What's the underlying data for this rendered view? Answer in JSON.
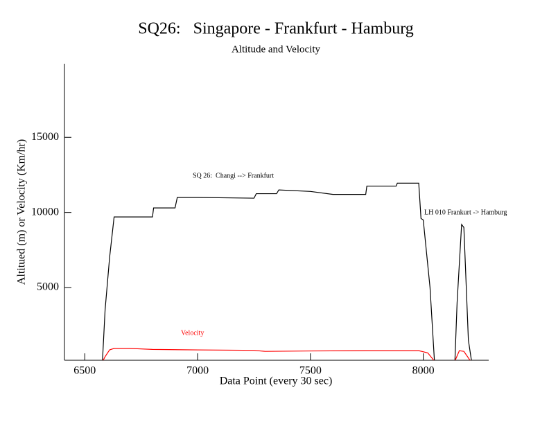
{
  "chart_data": {
    "type": "line",
    "title": "SQ26:   Singapore - Frankfurt - Hamburg",
    "subtitle": "Altitude and Velocity",
    "xlabel": "Data Point (every 30 sec)",
    "ylabel": "Altitued (m) or Velocity (Km/hr)",
    "annotations": [
      "SQ 26:  Changi --> Frankfurt",
      "LH 010 Frankurt -> Hamburg",
      "Velocity"
    ],
    "xlim": [
      6410,
      8290
    ],
    "xticks": [
      6500,
      7000,
      7500,
      8000
    ],
    "ylim": [
      160,
      19900
    ],
    "yticks": [
      5000,
      10000,
      15000
    ],
    "series": [
      {
        "color": "#000000",
        "x": [
          6578,
          6590,
          6610,
          6630,
          6700,
          6800,
          6805,
          6900,
          6910,
          7000,
          7250,
          7260,
          7350,
          7360,
          7500,
          7600,
          7745,
          7750,
          7880,
          7885,
          7980,
          7990,
          8000,
          8030,
          8050,
          8140,
          8150,
          8170,
          8180,
          8200,
          8215
        ],
        "values": [
          0,
          3500,
          7000,
          9700,
          9700,
          9700,
          10300,
          10300,
          11000,
          11000,
          10950,
          11250,
          11250,
          11500,
          11400,
          11200,
          11200,
          11750,
          11750,
          11950,
          11950,
          9600,
          9500,
          5000,
          0,
          0,
          4000,
          9200,
          9000,
          1500,
          0
        ]
      },
      {
        "color": "#ff0000",
        "x": [
          6578,
          6590,
          6610,
          6630,
          6700,
          6800,
          7000,
          7250,
          7300,
          7500,
          7750,
          7980,
          8020,
          8050,
          8100,
          8140,
          8160,
          8180,
          8210
        ],
        "values": [
          50,
          400,
          850,
          950,
          950,
          880,
          850,
          820,
          750,
          780,
          800,
          800,
          650,
          100,
          50,
          100,
          800,
          750,
          100
        ]
      }
    ]
  }
}
